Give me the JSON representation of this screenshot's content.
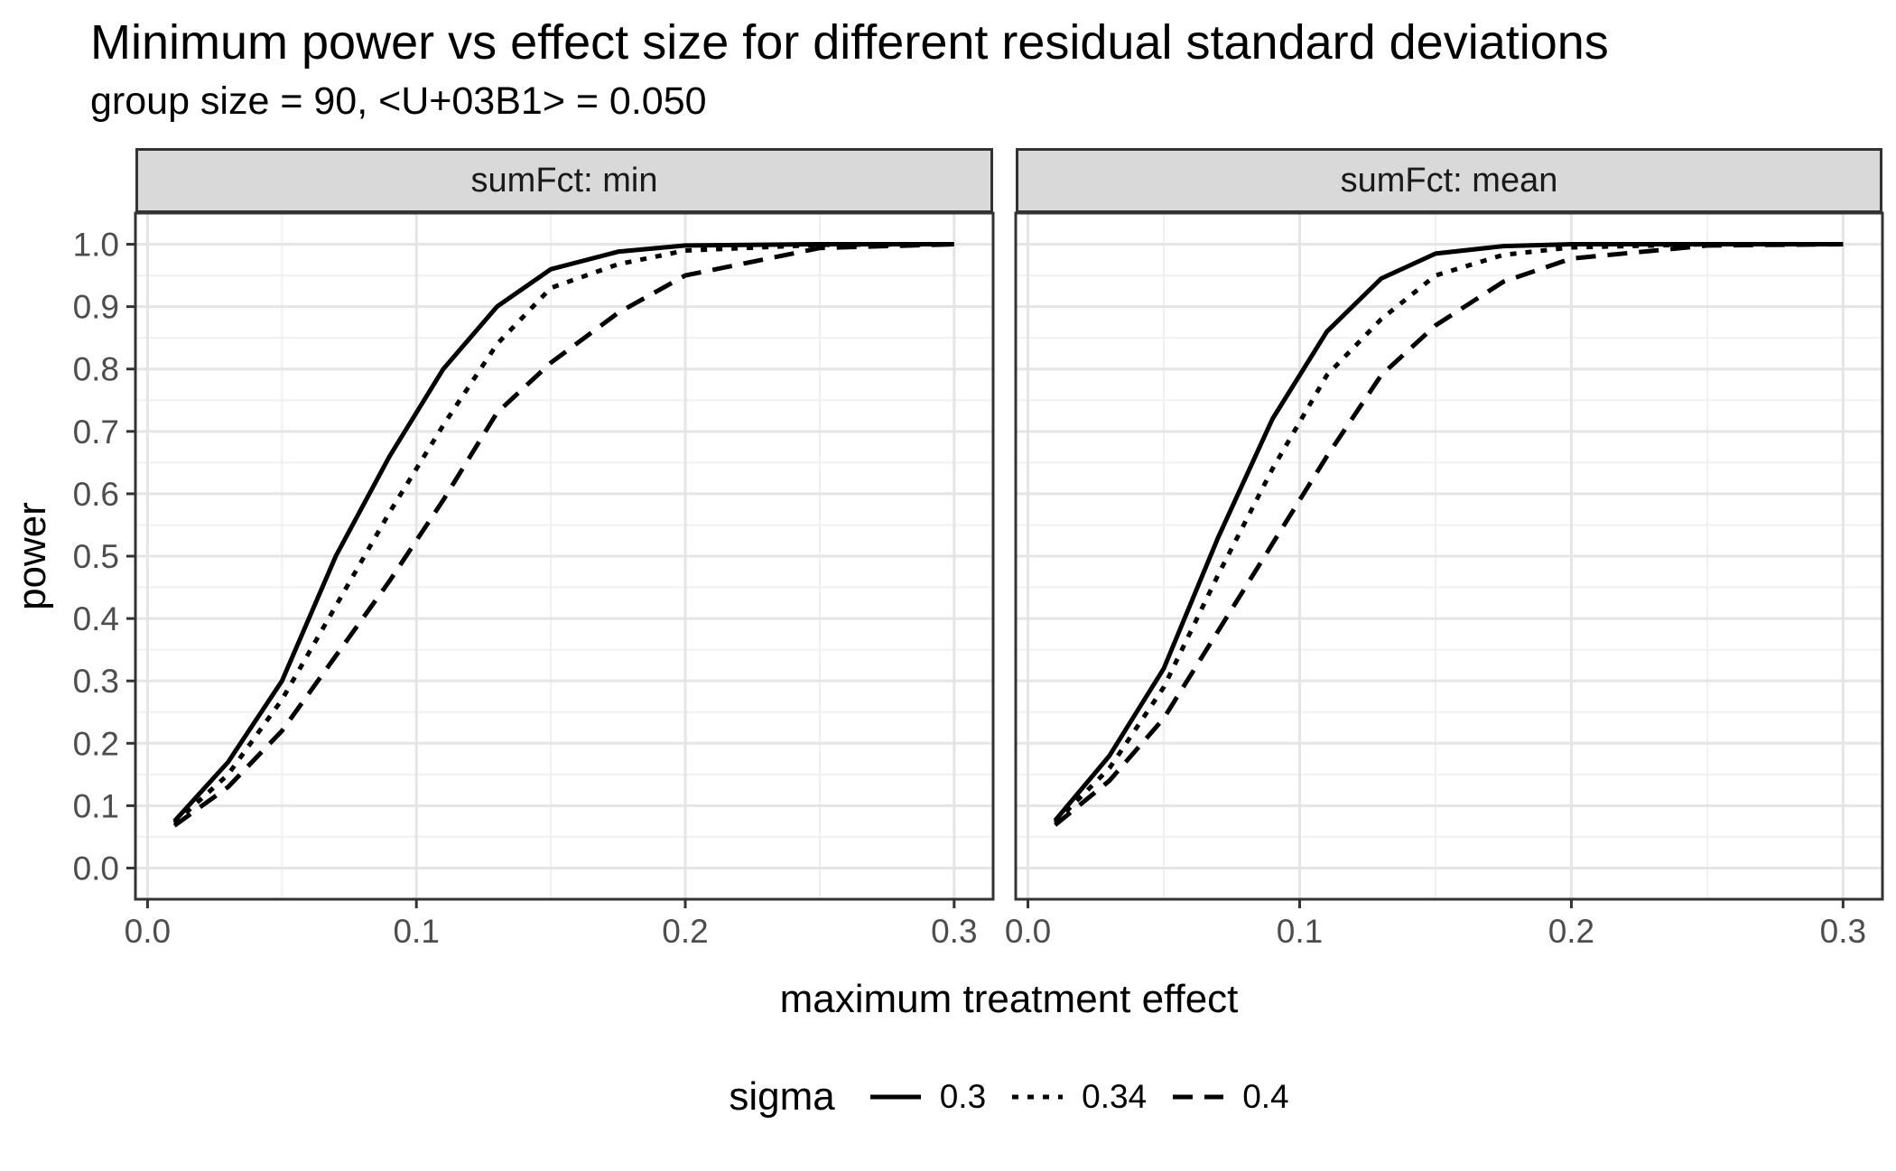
{
  "chart_data": {
    "type": "line",
    "title": "Minimum power vs effect size for different residual standard deviations",
    "subtitle": "group size = 90, <U+03B1> = 0.050",
    "xlabel": "maximum treatment effect",
    "ylabel": "power",
    "grid": true,
    "legend_position": "bottom",
    "xlim": [
      0.01,
      0.3
    ],
    "ylim": [
      0.0,
      1.0
    ],
    "x_tick_values": [
      0.0,
      0.1,
      0.2,
      0.3
    ],
    "x_tick_labels": [
      "0.0",
      "0.1",
      "0.2",
      "0.3"
    ],
    "y_tick_values": [
      0.0,
      0.1,
      0.2,
      0.3,
      0.4,
      0.5,
      0.6,
      0.7,
      0.8,
      0.9,
      1.0
    ],
    "y_tick_labels": [
      "0.0",
      "0.1",
      "0.2",
      "0.3",
      "0.4",
      "0.5",
      "0.6",
      "0.7",
      "0.8",
      "0.9",
      "1.0"
    ],
    "legend": {
      "title": "sigma",
      "entries": [
        {
          "label": "0.3",
          "linetype": "solid"
        },
        {
          "label": "0.34",
          "linetype": "dotted"
        },
        {
          "label": "0.4",
          "linetype": "dashed"
        }
      ]
    },
    "x": [
      0.01,
      0.03,
      0.05,
      0.07,
      0.09,
      0.11,
      0.13,
      0.15,
      0.175,
      0.2,
      0.25,
      0.3
    ],
    "facets": [
      {
        "label": "sumFct: min",
        "series": [
          {
            "name": "0.3",
            "linetype": "solid",
            "values": [
              0.075,
              0.17,
              0.3,
              0.5,
              0.66,
              0.8,
              0.9,
              0.96,
              0.988,
              0.998,
              1.0,
              1.0
            ]
          },
          {
            "name": "0.34",
            "linetype": "dotted",
            "values": [
              0.072,
              0.15,
              0.27,
              0.42,
              0.57,
              0.71,
              0.84,
              0.93,
              0.968,
              0.99,
              0.999,
              1.0
            ]
          },
          {
            "name": "0.4",
            "linetype": "dashed",
            "values": [
              0.068,
              0.13,
              0.22,
              0.34,
              0.46,
              0.59,
              0.73,
              0.81,
              0.89,
              0.95,
              0.994,
              1.0
            ]
          }
        ]
      },
      {
        "label": "sumFct: mean",
        "series": [
          {
            "name": "0.3",
            "linetype": "solid",
            "values": [
              0.076,
              0.18,
              0.32,
              0.53,
              0.72,
              0.86,
              0.945,
              0.985,
              0.997,
              1.0,
              1.0,
              1.0
            ]
          },
          {
            "name": "0.34",
            "linetype": "dotted",
            "values": [
              0.073,
              0.16,
              0.29,
              0.47,
              0.64,
              0.79,
              0.88,
              0.95,
              0.983,
              0.995,
              1.0,
              1.0
            ]
          },
          {
            "name": "0.4",
            "linetype": "dashed",
            "values": [
              0.069,
              0.14,
              0.24,
              0.38,
              0.52,
              0.66,
              0.79,
              0.87,
              0.94,
              0.977,
              0.998,
              1.0
            ]
          }
        ]
      }
    ],
    "colors": {
      "line": "#000000",
      "tick_label": "#4D4D4D",
      "axis_tick": "#333333",
      "strip_fill": "#D9D9D9",
      "panel_border": "#333333",
      "grid_major": "#E5E5E5",
      "grid_minor": "#F0F0F0",
      "text": "#000000",
      "background": "#FFFFFF"
    }
  }
}
